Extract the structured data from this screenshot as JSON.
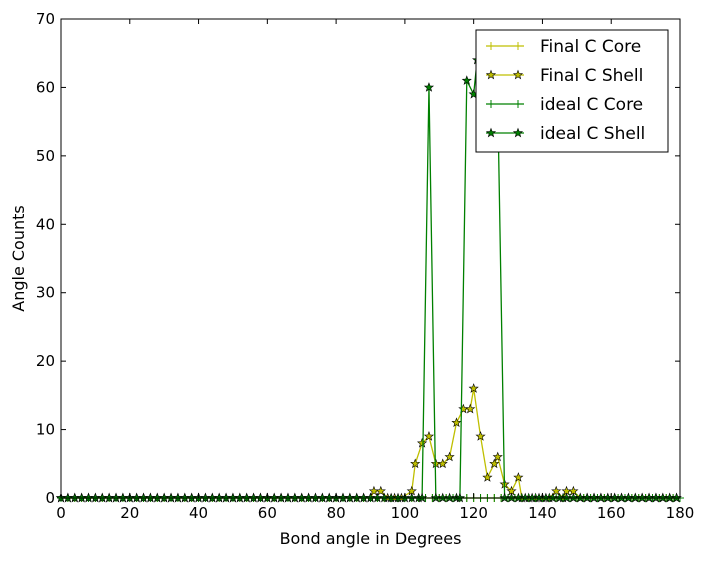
{
  "chart_data": {
    "type": "line",
    "xlabel": "Bond angle in Degrees",
    "ylabel": "Angle Counts",
    "xlim": [
      0,
      180
    ],
    "ylim": [
      0,
      70
    ],
    "x_ticks": [
      0,
      20,
      40,
      60,
      80,
      100,
      120,
      140,
      160,
      180
    ],
    "y_ticks": [
      0,
      10,
      20,
      30,
      40,
      50,
      60,
      70
    ],
    "grid": false,
    "legend_position": "top-right",
    "bin_width": 2,
    "series": [
      {
        "name": "Final C Core",
        "color": "#bfbf00",
        "marker": "plus",
        "x": [
          0,
          2,
          4,
          6,
          8,
          10,
          12,
          14,
          16,
          18,
          20,
          22,
          24,
          26,
          28,
          30,
          32,
          34,
          36,
          38,
          40,
          42,
          44,
          46,
          48,
          50,
          52,
          54,
          56,
          58,
          60,
          62,
          64,
          66,
          68,
          70,
          72,
          74,
          76,
          78,
          80,
          82,
          84,
          86,
          88,
          90,
          92,
          94,
          96,
          98,
          100,
          102,
          104,
          106,
          108,
          110,
          112,
          114,
          116,
          118,
          120,
          122,
          124,
          126,
          128,
          130,
          132,
          134,
          136,
          138,
          140,
          142,
          144,
          146,
          148,
          150,
          152,
          154,
          156,
          158,
          160,
          162,
          164,
          166,
          168,
          170,
          172,
          174,
          176,
          178,
          180
        ],
        "y": [
          0,
          0,
          0,
          0,
          0,
          0,
          0,
          0,
          0,
          0,
          0,
          0,
          0,
          0,
          0,
          0,
          0,
          0,
          0,
          0,
          0,
          0,
          0,
          0,
          0,
          0,
          0,
          0,
          0,
          0,
          0,
          0,
          0,
          0,
          0,
          0,
          0,
          0,
          0,
          0,
          0,
          0,
          0,
          0,
          0,
          0,
          0,
          0,
          0,
          0,
          0,
          0,
          0,
          0,
          0,
          0,
          0,
          0,
          0,
          0,
          0,
          0,
          0,
          0,
          0,
          0,
          0,
          0,
          0,
          0,
          0,
          0,
          0,
          0,
          0,
          0,
          0,
          0,
          0,
          0,
          0,
          0,
          0,
          0,
          0,
          0,
          0,
          0,
          0,
          0,
          0
        ]
      },
      {
        "name": "Final C Shell",
        "color": "#bfbf00",
        "marker": "star",
        "x": [
          0,
          2,
          4,
          6,
          8,
          10,
          12,
          14,
          16,
          18,
          20,
          22,
          24,
          26,
          28,
          30,
          32,
          34,
          36,
          38,
          40,
          42,
          44,
          46,
          48,
          50,
          52,
          54,
          56,
          58,
          60,
          62,
          64,
          66,
          68,
          70,
          72,
          74,
          76,
          78,
          80,
          82,
          84,
          86,
          88,
          90,
          91,
          93,
          95,
          97,
          99,
          102,
          103,
          105,
          107,
          109,
          111,
          113,
          115,
          117,
          119,
          120,
          122,
          124,
          126,
          127,
          129,
          131,
          133,
          134,
          136,
          138,
          140,
          142,
          144,
          146,
          147,
          149,
          151,
          153,
          155,
          157,
          159,
          161,
          163,
          165,
          167,
          169,
          171,
          173,
          175,
          177,
          179
        ],
        "y": [
          0,
          0,
          0,
          0,
          0,
          0,
          0,
          0,
          0,
          0,
          0,
          0,
          0,
          0,
          0,
          0,
          0,
          0,
          0,
          0,
          0,
          0,
          0,
          0,
          0,
          0,
          0,
          0,
          0,
          0,
          0,
          0,
          0,
          0,
          0,
          0,
          0,
          0,
          0,
          0,
          0,
          0,
          0,
          0,
          0,
          0,
          1,
          1,
          0,
          0,
          0,
          1,
          5,
          8,
          9,
          5,
          5,
          6,
          11,
          13,
          13,
          16,
          9,
          3,
          5,
          6,
          2,
          1,
          3,
          0,
          0,
          0,
          0,
          0,
          1,
          0,
          1,
          1,
          0,
          0,
          0,
          0,
          0,
          0,
          0,
          0,
          0,
          0,
          0,
          0,
          0,
          0,
          0
        ]
      },
      {
        "name": "ideal C Core",
        "color": "#008000",
        "marker": "plus",
        "x": [
          0,
          2,
          4,
          6,
          8,
          10,
          12,
          14,
          16,
          18,
          20,
          22,
          24,
          26,
          28,
          30,
          32,
          34,
          36,
          38,
          40,
          42,
          44,
          46,
          48,
          50,
          52,
          54,
          56,
          58,
          60,
          62,
          64,
          66,
          68,
          70,
          72,
          74,
          76,
          78,
          80,
          82,
          84,
          86,
          88,
          90,
          92,
          94,
          96,
          98,
          100,
          102,
          104,
          106,
          108,
          110,
          112,
          114,
          116,
          118,
          120,
          122,
          124,
          126,
          128,
          130,
          132,
          134,
          136,
          138,
          140,
          142,
          144,
          146,
          148,
          150,
          152,
          154,
          156,
          158,
          160,
          162,
          164,
          166,
          168,
          170,
          172,
          174,
          176,
          178,
          180
        ],
        "y": [
          0,
          0,
          0,
          0,
          0,
          0,
          0,
          0,
          0,
          0,
          0,
          0,
          0,
          0,
          0,
          0,
          0,
          0,
          0,
          0,
          0,
          0,
          0,
          0,
          0,
          0,
          0,
          0,
          0,
          0,
          0,
          0,
          0,
          0,
          0,
          0,
          0,
          0,
          0,
          0,
          0,
          0,
          0,
          0,
          0,
          0,
          0,
          0,
          0,
          0,
          0,
          0,
          0,
          0,
          0,
          0,
          0,
          0,
          0,
          0,
          0,
          0,
          0,
          0,
          0,
          0,
          0,
          0,
          0,
          0,
          0,
          0,
          0,
          0,
          0,
          0,
          0,
          0,
          0,
          0,
          0,
          0,
          0,
          0,
          0,
          0,
          0,
          0,
          0,
          0,
          0
        ]
      },
      {
        "name": "ideal C Shell",
        "color": "#008000",
        "marker": "star",
        "x": [
          0,
          2,
          4,
          6,
          8,
          10,
          12,
          14,
          16,
          18,
          20,
          22,
          24,
          26,
          28,
          30,
          32,
          34,
          36,
          38,
          40,
          42,
          44,
          46,
          48,
          50,
          52,
          54,
          56,
          58,
          60,
          62,
          64,
          66,
          68,
          70,
          72,
          74,
          76,
          78,
          80,
          82,
          84,
          86,
          88,
          90,
          92,
          94,
          96,
          98,
          100,
          102,
          104,
          105,
          107,
          109,
          111,
          113,
          115,
          116,
          118,
          120,
          121,
          123,
          125,
          127,
          129,
          131,
          133,
          135,
          137,
          139,
          141,
          143,
          145,
          147,
          149,
          151,
          153,
          155,
          157,
          159,
          161,
          163,
          165,
          167,
          169,
          171,
          173,
          175,
          177,
          179
        ],
        "y": [
          0,
          0,
          0,
          0,
          0,
          0,
          0,
          0,
          0,
          0,
          0,
          0,
          0,
          0,
          0,
          0,
          0,
          0,
          0,
          0,
          0,
          0,
          0,
          0,
          0,
          0,
          0,
          0,
          0,
          0,
          0,
          0,
          0,
          0,
          0,
          0,
          0,
          0,
          0,
          0,
          0,
          0,
          0,
          0,
          0,
          0,
          0,
          0,
          0,
          0,
          0,
          0,
          0,
          0,
          60,
          0,
          0,
          0,
          0,
          0,
          61,
          59,
          64,
          65,
          64,
          58,
          0,
          0,
          0,
          0,
          0,
          0,
          0,
          0,
          0,
          0,
          0,
          0,
          0,
          0,
          0,
          0,
          0,
          0,
          0,
          0,
          0,
          0,
          0,
          0,
          0,
          0
        ]
      }
    ]
  }
}
